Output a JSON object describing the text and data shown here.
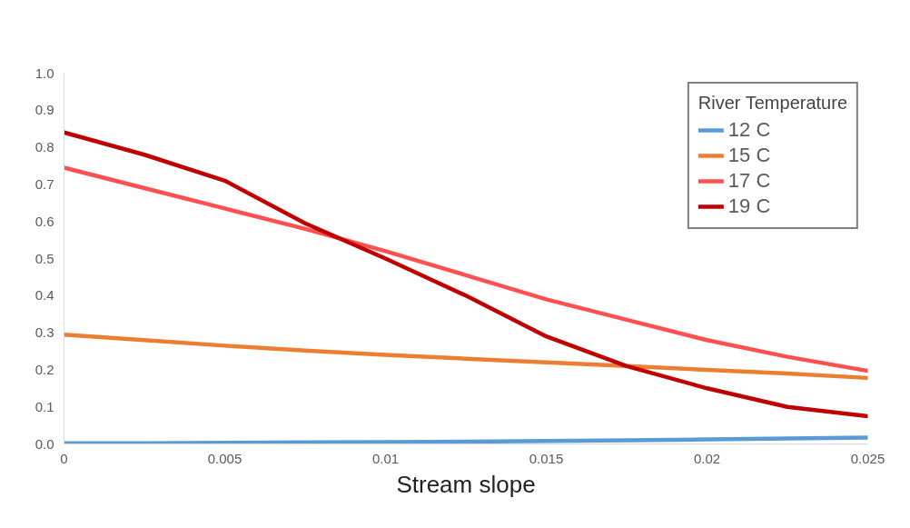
{
  "chart_data": {
    "type": "line",
    "xlabel": "Stream slope",
    "legend_title": "River Temperature",
    "x": [
      0,
      0.0025,
      0.005,
      0.0075,
      0.01,
      0.0125,
      0.015,
      0.0175,
      0.02,
      0.0225,
      0.025
    ],
    "series": [
      {
        "name": "12 C",
        "color": "#5b9bd5",
        "values": [
          0.002,
          0.002,
          0.003,
          0.004,
          0.005,
          0.006,
          0.008,
          0.01,
          0.012,
          0.015,
          0.017
        ]
      },
      {
        "name": "15 C",
        "color": "#ed7d31",
        "values": [
          0.295,
          0.28,
          0.265,
          0.252,
          0.24,
          0.23,
          0.22,
          0.21,
          0.2,
          0.19,
          0.178
        ]
      },
      {
        "name": "17 C",
        "color": "#ff5050",
        "values": [
          0.745,
          0.69,
          0.635,
          0.58,
          0.52,
          0.455,
          0.39,
          0.335,
          0.28,
          0.235,
          0.197
        ]
      },
      {
        "name": "19 C",
        "color": "#c00000",
        "values": [
          0.84,
          0.78,
          0.71,
          0.595,
          0.5,
          0.4,
          0.29,
          0.21,
          0.15,
          0.1,
          0.075
        ]
      }
    ],
    "xlim": [
      0,
      0.025
    ],
    "ylim": [
      0,
      1.0
    ],
    "xticks": [
      {
        "value": 0,
        "label": "0"
      },
      0.005,
      0.01,
      0.015,
      0.02,
      0.025
    ],
    "yticks": [
      {
        "value": 0,
        "label": "0.0"
      },
      0.1,
      0.2,
      0.3,
      0.4,
      0.5,
      0.6,
      0.7,
      0.8,
      0.9,
      {
        "value": 1,
        "label": "1.0"
      }
    ],
    "grid": false,
    "legend": "top right",
    "marker": "none",
    "line_style": "solid"
  }
}
